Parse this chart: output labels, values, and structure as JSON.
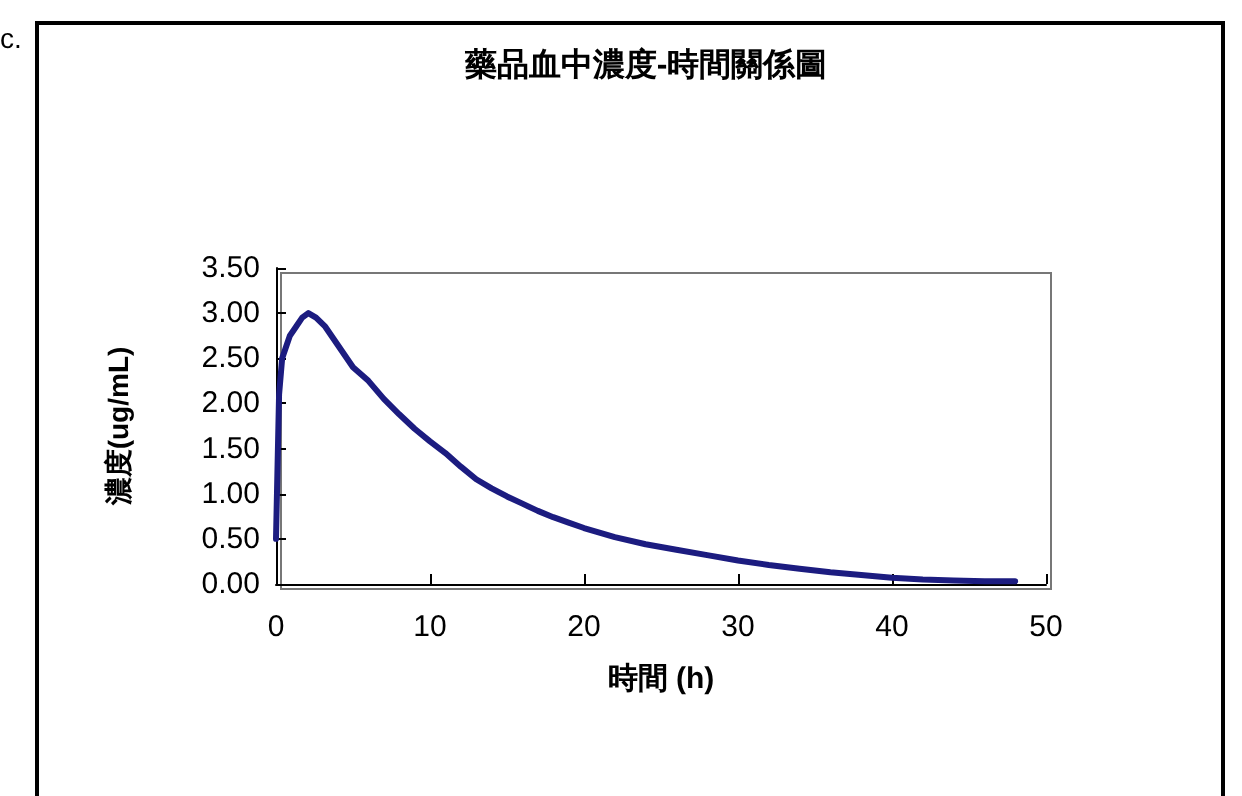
{
  "chart_data": {
    "type": "line",
    "title": "藥品血中濃度-時間關係圖",
    "xlabel": "時間 (h)",
    "ylabel": "濃度(ug/mL)",
    "annotations": [
      "c."
    ],
    "x": [
      0,
      0.2,
      0.4,
      0.6,
      0.9,
      1.3,
      1.7,
      2.1,
      2.6,
      3.2,
      4,
      5,
      6,
      7,
      8,
      9,
      10,
      11,
      12,
      13,
      14,
      15,
      16,
      17,
      18,
      19,
      20,
      22,
      24,
      26,
      28,
      30,
      32,
      34,
      36,
      38,
      40,
      42,
      44,
      46,
      48
    ],
    "series": [
      {
        "color": "#1c1c80",
        "values": [
          0.5,
          2.1,
          2.5,
          2.6,
          2.75,
          2.85,
          2.95,
          3.0,
          2.95,
          2.85,
          2.65,
          2.4,
          2.25,
          2.05,
          1.88,
          1.72,
          1.58,
          1.45,
          1.3,
          1.16,
          1.06,
          0.97,
          0.89,
          0.81,
          0.74,
          0.68,
          0.62,
          0.52,
          0.44,
          0.38,
          0.32,
          0.26,
          0.21,
          0.17,
          0.13,
          0.1,
          0.07,
          0.05,
          0.04,
          0.03,
          0.03
        ]
      }
    ],
    "xlim": [
      0,
      50
    ],
    "xticks": [
      0,
      10,
      20,
      30,
      40,
      50
    ],
    "ylim": [
      0,
      3.5
    ],
    "yticks": [
      {
        "value": 0,
        "label": "0.00"
      },
      {
        "value": 0.5,
        "label": "0.50"
      },
      {
        "value": 1,
        "label": "1.00"
      },
      {
        "value": 1.5,
        "label": "1.50"
      },
      {
        "value": 2,
        "label": "2.00"
      },
      {
        "value": 2.5,
        "label": "2.50"
      },
      {
        "value": 3,
        "label": "3.00"
      },
      {
        "value": 3.5,
        "label": "3.50"
      }
    ],
    "grid": false,
    "marker": "none",
    "line_style": "solid"
  }
}
